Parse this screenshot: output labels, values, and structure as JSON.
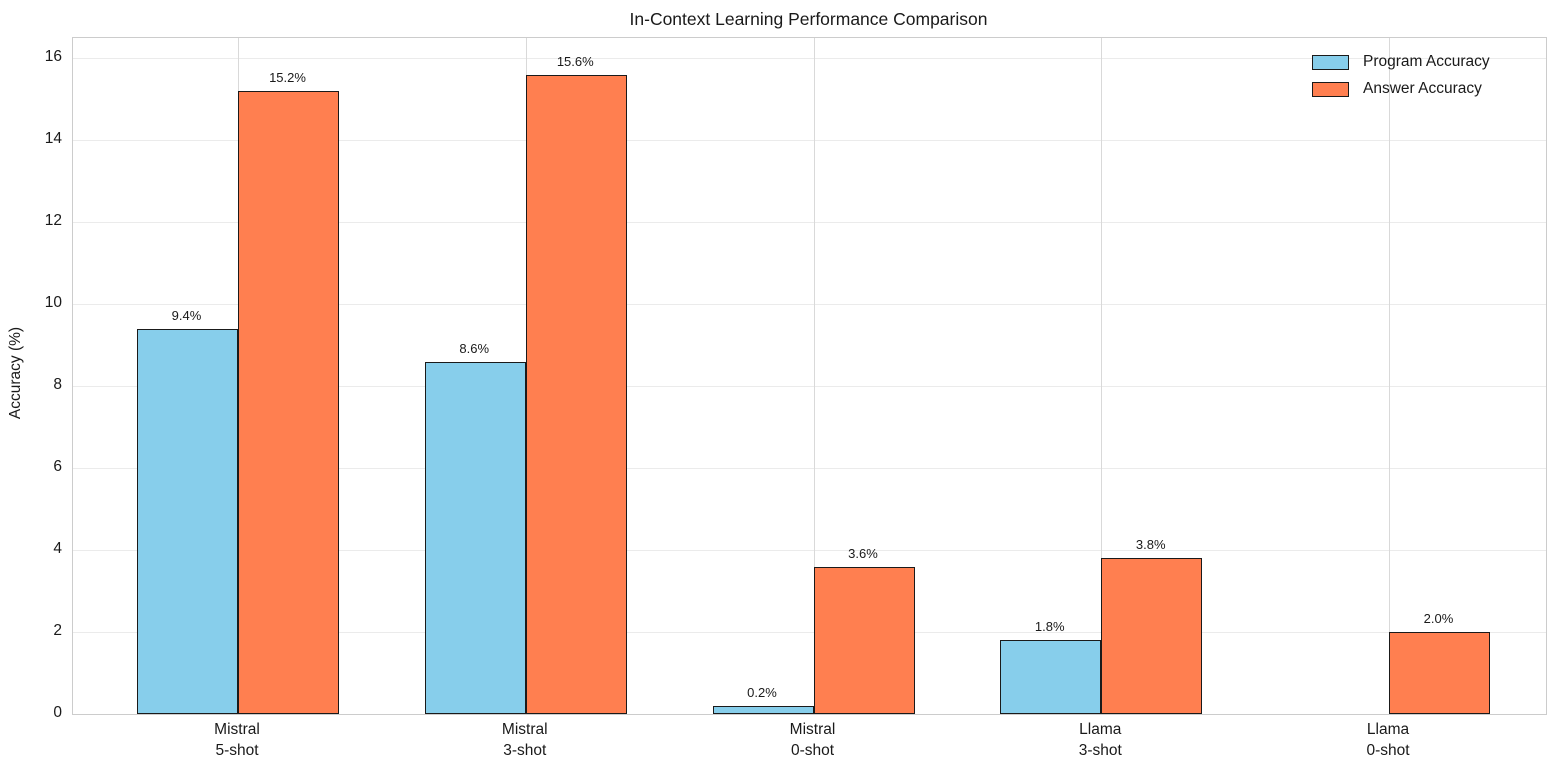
{
  "chart_data": {
    "type": "bar",
    "title": "In-Context Learning Performance Comparison",
    "xlabel": "",
    "ylabel": "Accuracy (%)",
    "ylim": [
      0,
      16.5
    ],
    "yticks": [
      0,
      2,
      4,
      6,
      8,
      10,
      12,
      14,
      16
    ],
    "grid": true,
    "legend_position": "upper-right",
    "categories": [
      {
        "model": "Mistral",
        "shot": "5-shot"
      },
      {
        "model": "Mistral",
        "shot": "3-shot"
      },
      {
        "model": "Mistral",
        "shot": "0-shot"
      },
      {
        "model": "Llama",
        "shot": "3-shot"
      },
      {
        "model": "Llama",
        "shot": "0-shot"
      }
    ],
    "series": [
      {
        "name": "Program Accuracy",
        "color": "#87CEEB",
        "edge_color": "#1a1a1a",
        "values": [
          9.4,
          8.6,
          0.2,
          1.8,
          0.0
        ],
        "bar_labels": [
          "9.4%",
          "8.6%",
          "0.2%",
          "1.8%",
          null
        ]
      },
      {
        "name": "Answer Accuracy",
        "color": "#FF7F50",
        "edge_color": "#1a1a1a",
        "values": [
          15.2,
          15.6,
          3.6,
          3.8,
          2.0
        ],
        "bar_labels": [
          "15.2%",
          "15.6%",
          "3.6%",
          "3.8%",
          "2.0%"
        ]
      }
    ],
    "colors": {
      "background": "#ffffff",
      "h_grid": "#ebebeb",
      "v_grid": "#d9d9d9",
      "spine": "#cccccc",
      "text": "#1a1a1a"
    }
  }
}
